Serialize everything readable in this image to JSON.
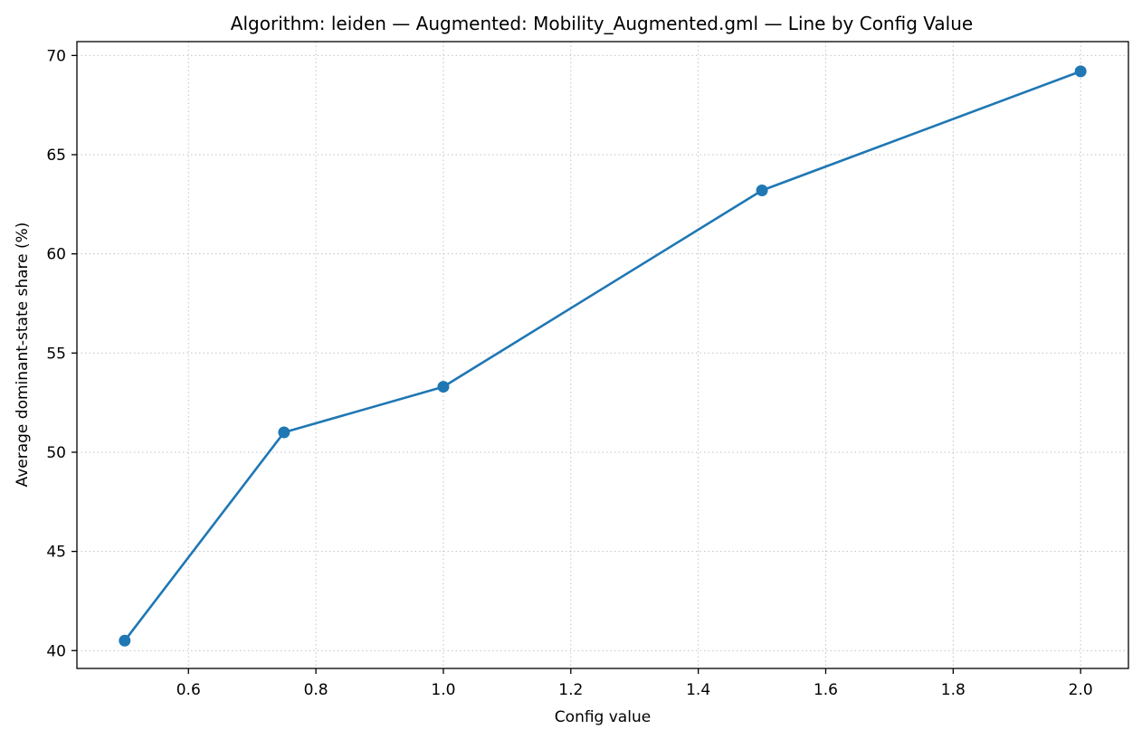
{
  "chart_data": {
    "type": "line",
    "title": "Algorithm: leiden — Augmented: Mobility_Augmented.gml — Line by Config Value",
    "xlabel": "Config value",
    "ylabel": "Average dominant-state share (%)",
    "xlim": [
      0.425,
      2.075
    ],
    "ylim": [
      39.1,
      70.7
    ],
    "xticks": [
      0.6,
      0.8,
      1.0,
      1.2,
      1.4,
      1.6,
      1.8,
      2.0
    ],
    "xtick_labels": [
      "0.6",
      "0.8",
      "1.0",
      "1.2",
      "1.4",
      "1.6",
      "1.8",
      "2.0"
    ],
    "yticks": [
      40,
      45,
      50,
      55,
      60,
      65,
      70
    ],
    "ytick_labels": [
      "40",
      "45",
      "50",
      "55",
      "60",
      "65",
      "70"
    ],
    "grid": true,
    "series": [
      {
        "color": "#1f77b4",
        "marker": "circle",
        "x": [
          0.5,
          0.75,
          1.0,
          1.5,
          2.0
        ],
        "y": [
          40.5,
          51.0,
          53.3,
          63.2,
          69.2
        ]
      }
    ]
  }
}
